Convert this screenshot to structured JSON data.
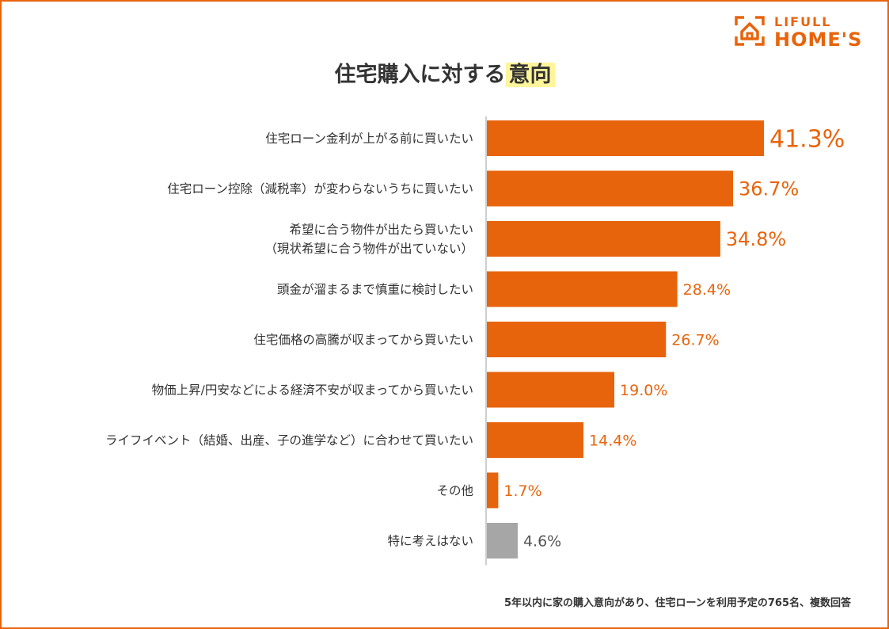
{
  "logo": {
    "line1": "LIFULL",
    "line2": "HOME'S"
  },
  "title": {
    "main": "住宅購入に対する",
    "highlight": "意向"
  },
  "footnote": "5年以内に家の購入意向があり、住宅ローンを利用予定の765名、複数回答",
  "colors": {
    "accent": "#e8640c",
    "gray": "#a6a6a6",
    "highlight": "#fff59a",
    "axis": "#bfbfbf"
  },
  "chart_data": {
    "type": "bar",
    "orientation": "horizontal",
    "title": "住宅購入に対する意向",
    "xlim": [
      0,
      45
    ],
    "categories": [
      [
        "住宅ローン金利が上がる前に買いたい"
      ],
      [
        "住宅ローン控除（減税率）が変わらないうちに買いたい"
      ],
      [
        "希望に合う物件が出たら買いたい",
        "（現状希望に合う物件が出ていない）"
      ],
      [
        "頭金が溜まるまで慎重に検討したい"
      ],
      [
        "住宅価格の高騰が収まってから買いたい"
      ],
      [
        "物価上昇/円安などによる経済不安が収まってから買いたい"
      ],
      [
        "ライフイベント（結婚、出産、子の進学など）に合わせて買いたい"
      ],
      [
        "その他"
      ],
      [
        "特に考えはない"
      ]
    ],
    "values": [
      41.3,
      36.7,
      34.8,
      28.4,
      26.7,
      19.0,
      14.4,
      1.7,
      4.6
    ],
    "value_labels": [
      "41.3%",
      "36.7%",
      "34.8%",
      "28.4%",
      "26.7%",
      "19.0%",
      "14.4%",
      "1.7%",
      "4.6%"
    ],
    "bar_colors": [
      "accent",
      "accent",
      "accent",
      "accent",
      "accent",
      "accent",
      "accent",
      "accent",
      "gray"
    ]
  }
}
